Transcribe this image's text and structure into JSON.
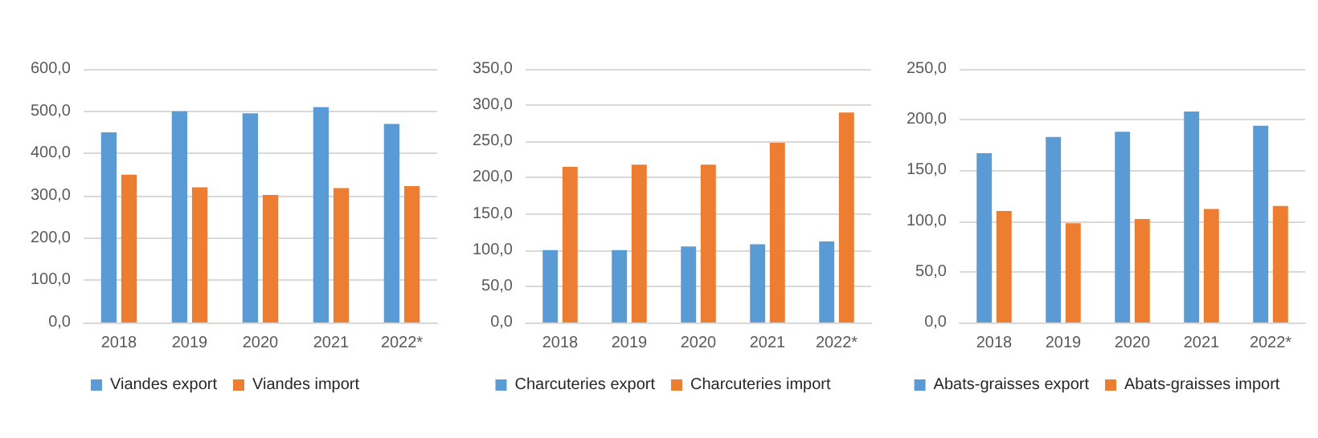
{
  "chart_data": [
    {
      "type": "bar",
      "categories": [
        "2018",
        "2019",
        "2020",
        "2021",
        "2022*"
      ],
      "series": [
        {
          "name": "Viandes export",
          "color": "#5b9bd5",
          "values": [
            450,
            500,
            495,
            510,
            470
          ]
        },
        {
          "name": "Viandes import",
          "color": "#ed7d31",
          "values": [
            350,
            320,
            302,
            318,
            323
          ]
        }
      ],
      "ylim": [
        0,
        600
      ],
      "yticks": [
        {
          "value": 0,
          "label": "0,0"
        },
        {
          "value": 100,
          "label": "100,0"
        },
        {
          "value": 200,
          "label": "200,0"
        },
        {
          "value": 300,
          "label": "300,0"
        },
        {
          "value": 400,
          "label": "400,0"
        },
        {
          "value": 500,
          "label": "500,0"
        },
        {
          "value": 600,
          "label": "600,0"
        }
      ],
      "grid": "y",
      "legend": "bottom"
    },
    {
      "type": "bar",
      "categories": [
        "2018",
        "2019",
        "2020",
        "2021",
        "2022*"
      ],
      "series": [
        {
          "name": "Charcuteries export",
          "color": "#5b9bd5",
          "values": [
            100,
            100,
            105,
            108,
            112
          ]
        },
        {
          "name": "Charcuteries import",
          "color": "#ed7d31",
          "values": [
            215,
            218,
            218,
            248,
            290
          ]
        }
      ],
      "ylim": [
        0,
        350
      ],
      "yticks": [
        {
          "value": 0,
          "label": "0,0"
        },
        {
          "value": 50,
          "label": "50,0"
        },
        {
          "value": 100,
          "label": "100,0"
        },
        {
          "value": 150,
          "label": "150,0"
        },
        {
          "value": 200,
          "label": "200,0"
        },
        {
          "value": 250,
          "label": "250,0"
        },
        {
          "value": 300,
          "label": "300,0"
        },
        {
          "value": 350,
          "label": "350,0"
        }
      ],
      "grid": "y",
      "legend": "bottom"
    },
    {
      "type": "bar",
      "categories": [
        "2018",
        "2019",
        "2020",
        "2021",
        "2022*"
      ],
      "series": [
        {
          "name": "Abats-graisses export",
          "color": "#5b9bd5",
          "values": [
            167,
            183,
            188,
            208,
            194
          ]
        },
        {
          "name": "Abats-graisses import",
          "color": "#ed7d31",
          "values": [
            110,
            98,
            102,
            112,
            115
          ]
        }
      ],
      "ylim": [
        0,
        250
      ],
      "yticks": [
        {
          "value": 0,
          "label": "0,0"
        },
        {
          "value": 50,
          "label": "50,0"
        },
        {
          "value": 100,
          "label": "100,0"
        },
        {
          "value": 150,
          "label": "150,0"
        },
        {
          "value": 200,
          "label": "200,0"
        },
        {
          "value": 250,
          "label": "250,0"
        }
      ],
      "grid": "y",
      "legend": "bottom"
    }
  ]
}
